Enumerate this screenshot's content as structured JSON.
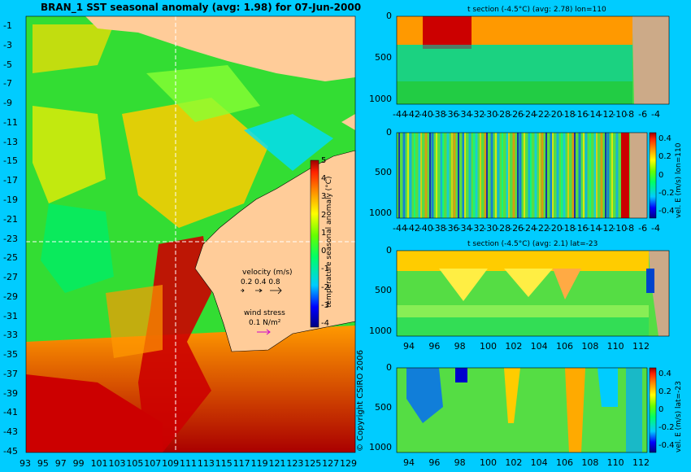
{
  "chart_data": [
    {
      "type": "heatmap",
      "panel": "map",
      "title": "BRAN_1 SST seasonal anomaly (avg: 1.98) for 07-Jun-2000",
      "x_ticks": [
        "93",
        "95",
        "97",
        "99",
        "101",
        "103",
        "105",
        "107",
        "109",
        "111",
        "113",
        "115",
        "117",
        "119",
        "121",
        "123",
        "125",
        "127",
        "129"
      ],
      "y_ticks": [
        "-1",
        "-3",
        "-5",
        "-7",
        "-9",
        "-11",
        "-13",
        "-15",
        "-17",
        "-19",
        "-21",
        "-23",
        "-25",
        "-27",
        "-29",
        "-31",
        "-33",
        "-35",
        "-37",
        "-39",
        "-41",
        "-43",
        "-45"
      ],
      "xlim": [
        93,
        130
      ],
      "ylim": [
        -45,
        0
      ],
      "colorbar": {
        "label": "temperature seasonal anomaly (°C)",
        "ticks": [
          "5",
          "4",
          "3",
          "2",
          "1",
          "0",
          "-1",
          "-2",
          "-3",
          "-4"
        ],
        "range": [
          -4,
          5
        ]
      },
      "velocity_legend": {
        "title": "velocity (m/s)",
        "values": "0.2 0.4 0.8"
      },
      "wind_legend": {
        "title": "wind stress",
        "value": "0.1 N/m²"
      },
      "copyright": "© Copyright CSIRO 2006"
    },
    {
      "type": "heatmap",
      "panel": "t-section-lon",
      "title": "t section (-4.5°C) (avg: 2.78) lon=110",
      "x_ticks": [
        "-44",
        "-42",
        "-40",
        "-38",
        "-36",
        "-34",
        "-32",
        "-30",
        "-28",
        "-26",
        "-24",
        "-22",
        "-20",
        "-18",
        "-16",
        "-14",
        "-12",
        "-10",
        "-8",
        "-6",
        "-4"
      ],
      "y_ticks": [
        "0",
        "500",
        "1000"
      ]
    },
    {
      "type": "heatmap",
      "panel": "v-section-lon",
      "x_ticks": [
        "-44",
        "-42",
        "-40",
        "-38",
        "-36",
        "-34",
        "-32",
        "-30",
        "-28",
        "-26",
        "-24",
        "-22",
        "-20",
        "-18",
        "-16",
        "-14",
        "-12",
        "-10",
        "-8",
        "-6",
        "-4"
      ],
      "y_ticks": [
        "0",
        "500",
        "1000"
      ],
      "colorbar": {
        "label": "vel. E (m/s) lon=110",
        "ticks": [
          "0.4",
          "0.2",
          "0",
          "-0.2",
          "-0.4"
        ]
      }
    },
    {
      "type": "heatmap",
      "panel": "t-section-lat",
      "title": "t section (-4.5°C) (avg: 2.1) lat=-23",
      "x_ticks": [
        "94",
        "96",
        "98",
        "100",
        "102",
        "104",
        "106",
        "108",
        "110",
        "112"
      ],
      "y_ticks": [
        "0",
        "500",
        "1000"
      ]
    },
    {
      "type": "heatmap",
      "panel": "v-section-lat",
      "x_ticks": [
        "94",
        "96",
        "98",
        "100",
        "102",
        "104",
        "106",
        "108",
        "110",
        "112"
      ],
      "y_ticks": [
        "0",
        "500",
        "1000"
      ],
      "colorbar": {
        "label": "vel. E (m/s) lat=-23",
        "ticks": [
          "0.4",
          "0.2",
          "0",
          "-0.2",
          "-0.4"
        ]
      }
    }
  ]
}
